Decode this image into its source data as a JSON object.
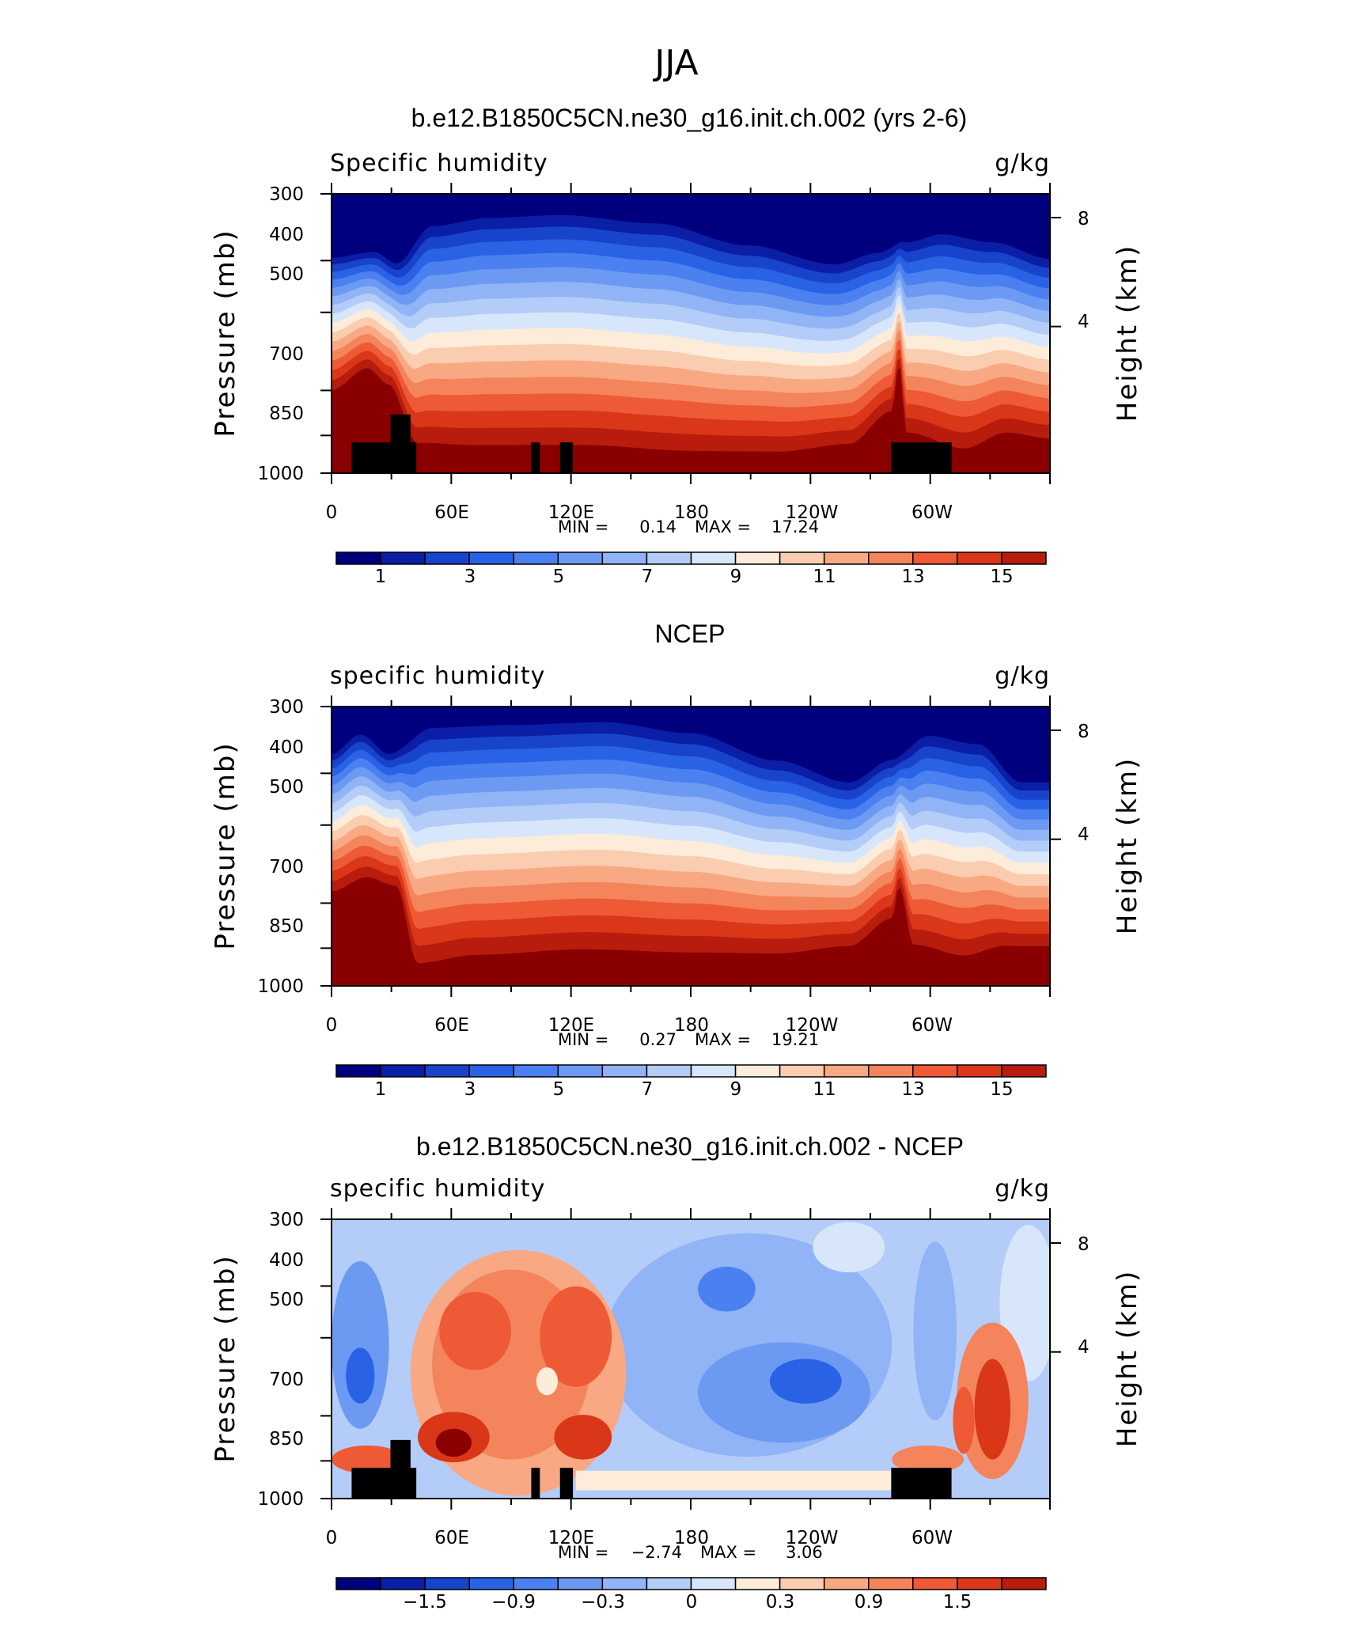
{
  "main_title": "JJA",
  "colors": {
    "absolute": [
      "#00007f",
      "#0a1ea6",
      "#1844cc",
      "#2a62e6",
      "#4a80f0",
      "#6c9af2",
      "#90b4f5",
      "#b4ccf8",
      "#d7e6fb",
      "#fdecd9",
      "#fbcdb0",
      "#f8a983",
      "#f4845c",
      "#ed5a35",
      "#d93717",
      "#b71c0d",
      "#8a0000"
    ],
    "difference": [
      "#00007f",
      "#0a1ea6",
      "#1844cc",
      "#2a62e6",
      "#4a80f0",
      "#6c9af2",
      "#90b4f5",
      "#b4ccf8",
      "#d7e6fb",
      "#fdecd9",
      "#fbcdb0",
      "#f8a983",
      "#f4845c",
      "#ed5a35",
      "#d93717",
      "#b71c0d",
      "#8a0000"
    ]
  },
  "chart_data": [
    {
      "type": "heatmap",
      "title": "b.e12.B1850C5CN.ne30_g16.init.ch.002 (yrs 2-6)",
      "left_label": "Specific humidity",
      "right_label": "g/kg",
      "xlabel": "",
      "ylabel": "Pressure (mb)",
      "y2label": "Height (km)",
      "x_ticks": [
        "0",
        "60E",
        "120E",
        "180",
        "120W",
        "60W"
      ],
      "y_ticks": [
        "300",
        "400",
        "500",
        "700",
        "850",
        "1000"
      ],
      "y2_ticks": [
        "8",
        "4"
      ],
      "min_label": "MIN =",
      "min_value": "0.14",
      "max_label": "MAX =",
      "max_value": "17.24",
      "colorbar_ticks": [
        "1",
        "3",
        "5",
        "7",
        "9",
        "11",
        "13",
        "15"
      ],
      "field": "absolute",
      "land_mask": true,
      "min": 0.14,
      "max": 17.24
    },
    {
      "type": "heatmap",
      "title": "NCEP",
      "left_label": "specific humidity",
      "right_label": "g/kg",
      "xlabel": "",
      "ylabel": "Pressure (mb)",
      "y2label": "Height (km)",
      "x_ticks": [
        "0",
        "60E",
        "120E",
        "180",
        "120W",
        "60W"
      ],
      "y_ticks": [
        "300",
        "400",
        "500",
        "700",
        "850",
        "1000"
      ],
      "y2_ticks": [
        "8",
        "4"
      ],
      "min_label": "MIN =",
      "min_value": "0.27",
      "max_label": "MAX =",
      "max_value": "19.21",
      "colorbar_ticks": [
        "1",
        "3",
        "5",
        "7",
        "9",
        "11",
        "13",
        "15"
      ],
      "field": "absolute",
      "land_mask": false,
      "min": 0.27,
      "max": 19.21
    },
    {
      "type": "heatmap",
      "title": "b.e12.B1850C5CN.ne30_g16.init.ch.002 - NCEP",
      "left_label": "specific humidity",
      "right_label": "g/kg",
      "xlabel": "",
      "ylabel": "Pressure (mb)",
      "y2label": "Height (km)",
      "x_ticks": [
        "0",
        "60E",
        "120E",
        "180",
        "120W",
        "60W"
      ],
      "y_ticks": [
        "300",
        "400",
        "500",
        "700",
        "850",
        "1000"
      ],
      "y2_ticks": [
        "8",
        "4"
      ],
      "min_label": "MIN =",
      "min_value": "−2.74",
      "max_label": "MAX =",
      "max_value": "3.06",
      "colorbar_ticks": [
        "−1.5",
        "−0.9",
        "−0.3",
        "0",
        "0.3",
        "0.9",
        "1.5"
      ],
      "field": "difference",
      "land_mask": true,
      "min": -2.74,
      "max": 3.06
    }
  ]
}
